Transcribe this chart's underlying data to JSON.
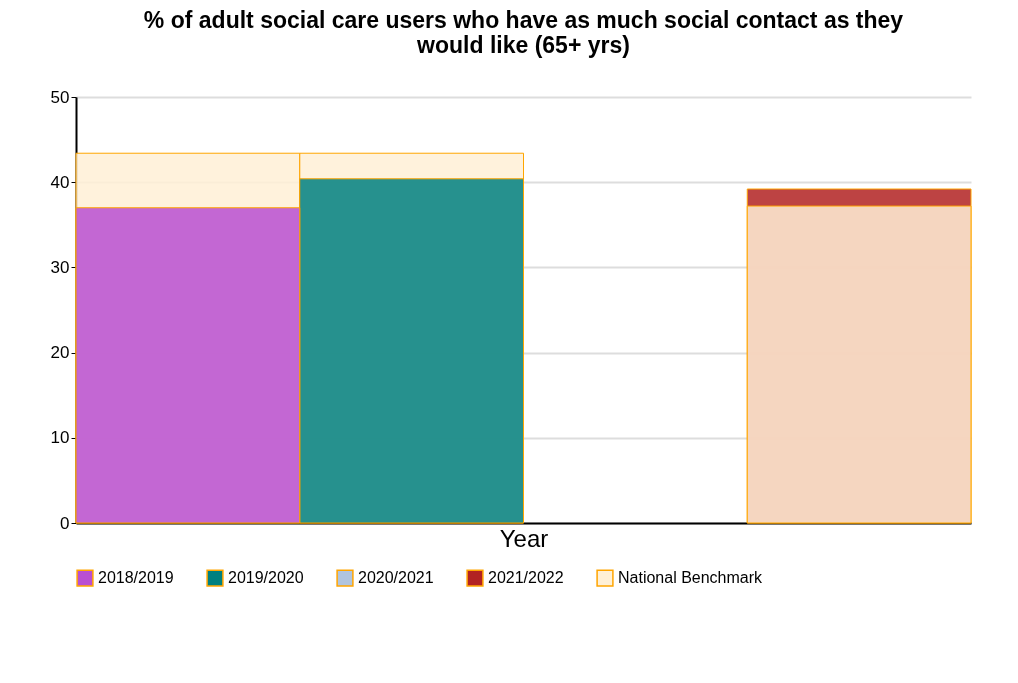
{
  "chart_data": {
    "type": "bar",
    "title": "% of adult social care users who have as much social contact as they would like (65+ yrs)",
    "xlabel": "Year",
    "categories": [
      null,
      null,
      null,
      null
    ],
    "ylim": [
      0,
      50
    ],
    "yticks": [
      0,
      10,
      20,
      30,
      40,
      50
    ],
    "grid": "y",
    "legend": "bottom",
    "series": [
      {
        "name": "2018/2019",
        "color": "#b94fd1",
        "values": [
          37.0,
          null,
          null,
          null
        ]
      },
      {
        "name": "2019/2020",
        "color": "#008080",
        "values": [
          null,
          40.4,
          null,
          null
        ]
      },
      {
        "name": "2020/2021",
        "color": "#b0c4de",
        "values": [
          null,
          null,
          null,
          null
        ]
      },
      {
        "name": "2021/2022",
        "color": "#b22222",
        "values": [
          null,
          null,
          null,
          39.2
        ]
      },
      {
        "name": "National Benchmark",
        "color": "#fff0d6",
        "values": [
          43.4,
          43.4,
          null,
          37.2
        ]
      }
    ]
  }
}
